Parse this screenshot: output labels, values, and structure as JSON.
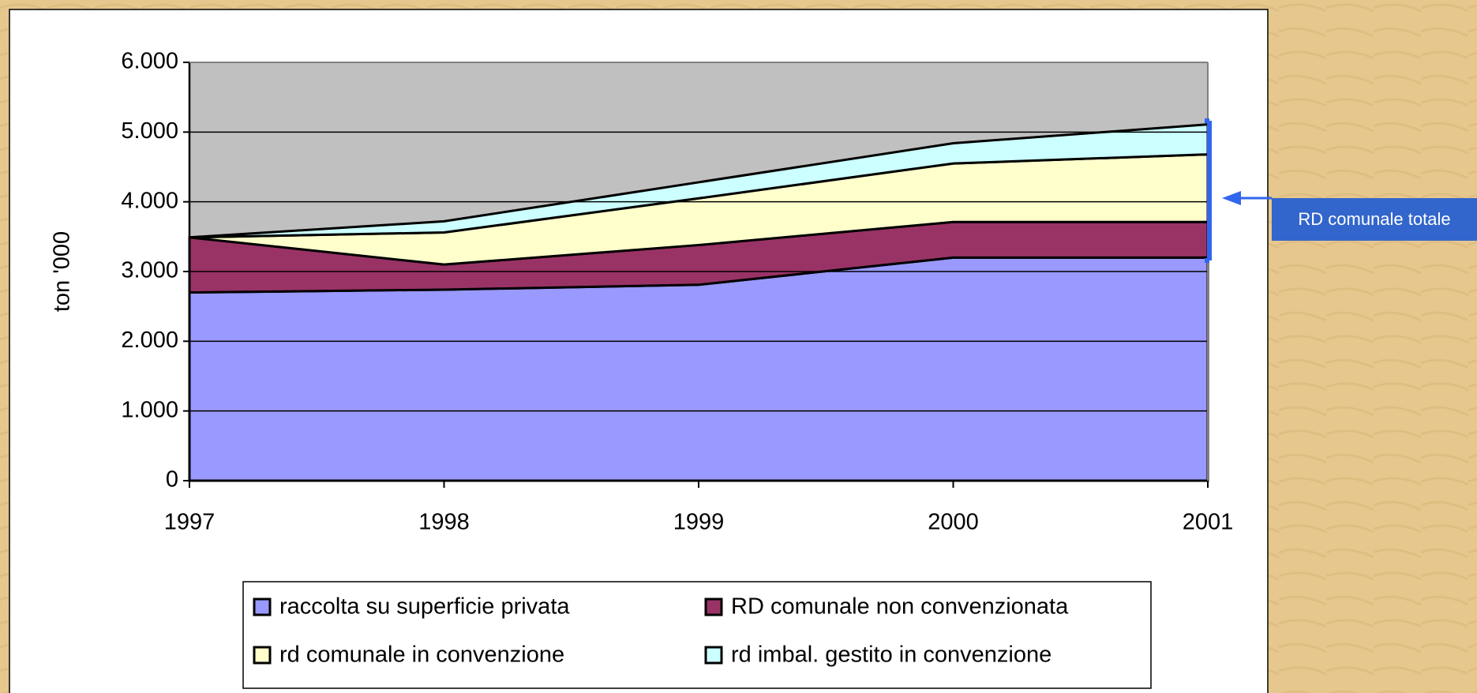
{
  "chart_data": {
    "type": "stacked_area",
    "categories": [
      "1997",
      "1998",
      "1999",
      "2000",
      "2001"
    ],
    "series": [
      {
        "name": "raccolta su superficie privata",
        "color": "#9999ff",
        "values": [
          2700,
          2740,
          2810,
          3200,
          3200
        ]
      },
      {
        "name": "RD comunale non convenzionata",
        "color": "#993366",
        "values": [
          790,
          360,
          570,
          510,
          510
        ]
      },
      {
        "name": "rd comunale in convenzione",
        "color": "#ffffcc",
        "values": [
          0,
          460,
          670,
          840,
          970
        ]
      },
      {
        "name": "rd imbal. gestito in convenzione",
        "color": "#ccffff",
        "values": [
          0,
          160,
          230,
          290,
          430
        ]
      }
    ],
    "ylabel": "ton '000",
    "ylim": [
      0,
      6000
    ],
    "yticks": [
      0,
      {
        "value": 1000,
        "label": "1.000"
      },
      {
        "value": 2000,
        "label": "2.000"
      },
      {
        "value": 3000,
        "label": "3.000"
      },
      {
        "value": 4000,
        "label": "4.000"
      },
      {
        "value": 5000,
        "label": "5.000"
      },
      {
        "value": 6000,
        "label": "6.000"
      }
    ],
    "grid": true,
    "plot_background": "#c0c0c0",
    "annotation": "RD comunale totale"
  }
}
